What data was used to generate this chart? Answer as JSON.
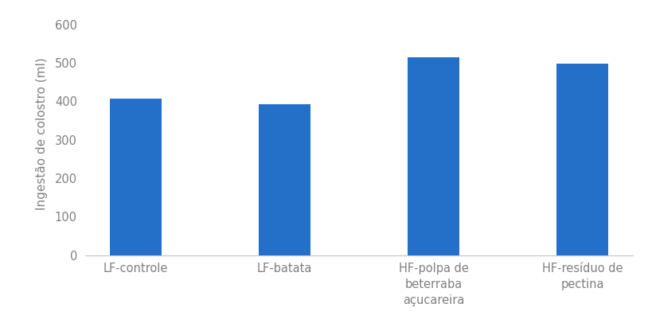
{
  "categories": [
    "LF-controle",
    "LF-batata",
    "HF-polpa de\nbeterraba\naçucareira",
    "HF-resíduo de\npectina"
  ],
  "values": [
    408,
    392,
    515,
    498
  ],
  "bar_color": "#2470C8",
  "ylabel": "Ingestão de colostro (ml)",
  "ylim": [
    0,
    630
  ],
  "yticks": [
    0,
    100,
    200,
    300,
    400,
    500,
    600
  ],
  "bar_width": 0.35,
  "background_color": "#ffffff",
  "spine_color": "#cccccc",
  "label_color": "#808080",
  "ylabel_fontsize": 11,
  "tick_fontsize": 10.5,
  "figsize": [
    8.2,
    4.11
  ],
  "dpi": 100
}
